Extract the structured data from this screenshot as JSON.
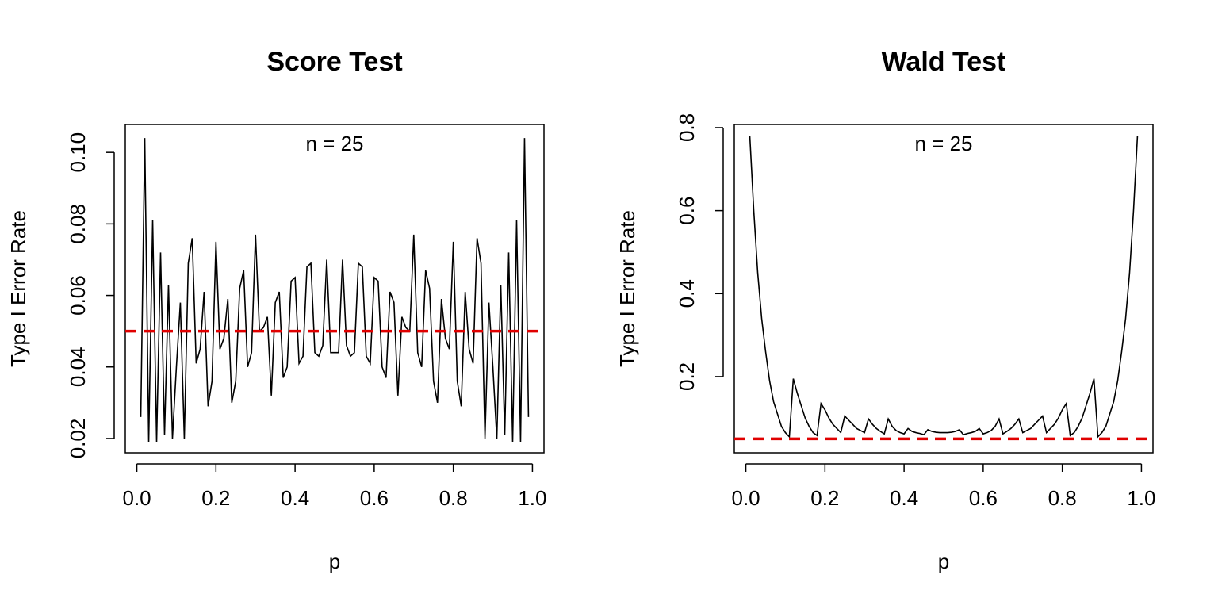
{
  "chart_data": [
    {
      "type": "line",
      "title": "Score Test",
      "annotation": "n = 25",
      "xlabel": "p",
      "ylabel": "Type I Error Rate",
      "x": [
        0.01,
        0.02,
        0.03,
        0.04,
        0.05,
        0.06,
        0.07,
        0.08,
        0.09,
        0.1,
        0.11,
        0.12,
        0.13,
        0.14,
        0.15,
        0.16,
        0.17,
        0.18,
        0.19,
        0.2,
        0.21,
        0.22,
        0.23,
        0.24,
        0.25,
        0.26,
        0.27,
        0.28,
        0.29,
        0.3,
        0.31,
        0.32,
        0.33,
        0.34,
        0.35,
        0.36,
        0.37,
        0.38,
        0.39,
        0.4,
        0.41,
        0.42,
        0.43,
        0.44,
        0.45,
        0.46,
        0.47,
        0.48,
        0.49,
        0.5,
        0.51,
        0.52,
        0.53,
        0.54,
        0.55,
        0.56,
        0.57,
        0.58,
        0.59,
        0.6,
        0.61,
        0.62,
        0.63,
        0.64,
        0.65,
        0.66,
        0.67,
        0.68,
        0.69,
        0.7,
        0.71,
        0.72,
        0.73,
        0.74,
        0.75,
        0.76,
        0.77,
        0.78,
        0.79,
        0.8,
        0.81,
        0.82,
        0.83,
        0.84,
        0.85,
        0.86,
        0.87,
        0.88,
        0.89,
        0.9,
        0.91,
        0.92,
        0.93,
        0.94,
        0.95,
        0.96,
        0.97,
        0.98,
        0.99
      ],
      "series": [
        {
          "color": "#000000",
          "values": [
            0.026,
            0.104,
            0.019,
            0.081,
            0.019,
            0.072,
            0.021,
            0.063,
            0.02,
            0.04,
            0.058,
            0.02,
            0.069,
            0.076,
            0.041,
            0.045,
            0.061,
            0.029,
            0.036,
            0.075,
            0.045,
            0.048,
            0.059,
            0.03,
            0.036,
            0.062,
            0.067,
            0.04,
            0.044,
            0.077,
            0.05,
            0.051,
            0.054,
            0.032,
            0.058,
            0.061,
            0.037,
            0.04,
            0.064,
            0.065,
            0.041,
            0.043,
            0.068,
            0.069,
            0.044,
            0.043,
            0.046,
            0.07,
            0.044,
            0.044,
            0.044,
            0.07,
            0.046,
            0.043,
            0.044,
            0.069,
            0.068,
            0.043,
            0.041,
            0.065,
            0.064,
            0.04,
            0.037,
            0.061,
            0.058,
            0.032,
            0.054,
            0.051,
            0.05,
            0.077,
            0.044,
            0.04,
            0.067,
            0.062,
            0.036,
            0.03,
            0.059,
            0.048,
            0.045,
            0.075,
            0.036,
            0.029,
            0.061,
            0.045,
            0.041,
            0.076,
            0.069,
            0.02,
            0.058,
            0.04,
            0.02,
            0.063,
            0.021,
            0.072,
            0.019,
            0.081,
            0.019,
            0.104,
            0.026
          ]
        }
      ],
      "reference_line": 0.05,
      "reference_color": "#e00000",
      "xlim": [
        -0.0292,
        1.0292
      ],
      "ylim": [
        0.016,
        0.1078
      ],
      "xticks": [
        {
          "value": 0,
          "label": "0.0"
        },
        0.2,
        0.4,
        0.6,
        0.8,
        {
          "value": 1,
          "label": "1.0"
        }
      ],
      "yticks": [
        0.02,
        0.04,
        0.06,
        0.08,
        {
          "value": 0.1,
          "label": "0.10"
        }
      ]
    },
    {
      "type": "line",
      "title": "Wald Test",
      "annotation": "n = 25",
      "xlabel": "p",
      "ylabel": "Type I Error Rate",
      "x": [
        0.01,
        0.02,
        0.03,
        0.04,
        0.05,
        0.06,
        0.07,
        0.08,
        0.09,
        0.1,
        0.11,
        0.12,
        0.13,
        0.14,
        0.15,
        0.16,
        0.17,
        0.18,
        0.19,
        0.2,
        0.21,
        0.22,
        0.23,
        0.24,
        0.25,
        0.26,
        0.27,
        0.28,
        0.29,
        0.3,
        0.31,
        0.32,
        0.33,
        0.34,
        0.35,
        0.36,
        0.37,
        0.38,
        0.39,
        0.4,
        0.41,
        0.42,
        0.43,
        0.44,
        0.45,
        0.46,
        0.47,
        0.48,
        0.49,
        0.5,
        0.51,
        0.52,
        0.53,
        0.54,
        0.55,
        0.56,
        0.57,
        0.58,
        0.59,
        0.6,
        0.61,
        0.62,
        0.63,
        0.64,
        0.65,
        0.66,
        0.67,
        0.68,
        0.69,
        0.7,
        0.71,
        0.72,
        0.73,
        0.74,
        0.75,
        0.76,
        0.77,
        0.78,
        0.79,
        0.8,
        0.81,
        0.82,
        0.83,
        0.84,
        0.85,
        0.86,
        0.87,
        0.88,
        0.89,
        0.9,
        0.91,
        0.92,
        0.93,
        0.94,
        0.95,
        0.96,
        0.97,
        0.98,
        0.99
      ],
      "series": [
        {
          "color": "#000000",
          "values": [
            0.78,
            0.6,
            0.45,
            0.34,
            0.26,
            0.19,
            0.14,
            0.11,
            0.08,
            0.065,
            0.055,
            0.195,
            0.16,
            0.13,
            0.1,
            0.08,
            0.065,
            0.058,
            0.135,
            0.12,
            0.1,
            0.085,
            0.075,
            0.065,
            0.105,
            0.095,
            0.085,
            0.075,
            0.07,
            0.065,
            0.098,
            0.085,
            0.075,
            0.068,
            0.062,
            0.098,
            0.08,
            0.07,
            0.065,
            0.062,
            0.075,
            0.068,
            0.065,
            0.063,
            0.06,
            0.072,
            0.068,
            0.066,
            0.065,
            0.065,
            0.065,
            0.066,
            0.068,
            0.072,
            0.06,
            0.063,
            0.065,
            0.068,
            0.075,
            0.062,
            0.065,
            0.07,
            0.08,
            0.098,
            0.062,
            0.068,
            0.075,
            0.085,
            0.098,
            0.065,
            0.07,
            0.075,
            0.085,
            0.095,
            0.105,
            0.065,
            0.075,
            0.085,
            0.1,
            0.12,
            0.135,
            0.058,
            0.065,
            0.08,
            0.1,
            0.13,
            0.16,
            0.195,
            0.055,
            0.065,
            0.08,
            0.11,
            0.14,
            0.19,
            0.26,
            0.34,
            0.45,
            0.6,
            0.78
          ]
        }
      ],
      "reference_line": 0.05,
      "reference_color": "#e00000",
      "xlim": [
        -0.0292,
        1.0292
      ],
      "ylim": [
        0.0164,
        0.8076
      ],
      "xticks": [
        {
          "value": 0,
          "label": "0.0"
        },
        0.2,
        0.4,
        0.6,
        0.8,
        {
          "value": 1,
          "label": "1.0"
        }
      ],
      "yticks": [
        0.2,
        0.4,
        0.6,
        0.8
      ]
    }
  ]
}
